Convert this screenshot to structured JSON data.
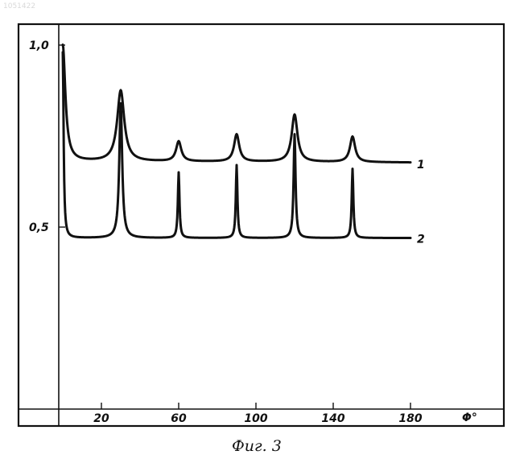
{
  "corner_mark": "1051422",
  "caption": "Фиг. 3",
  "chart_data": {
    "type": "line",
    "title": "",
    "xlabel": "Φ°",
    "ylabel": "",
    "xlim": [
      0,
      195
    ],
    "ylim": [
      0,
      1.05
    ],
    "x_ticks": [
      {
        "value": 20,
        "label": "20"
      },
      {
        "value": 60,
        "label": "60"
      },
      {
        "value": 100,
        "label": "100"
      },
      {
        "value": 140,
        "label": "140"
      },
      {
        "value": 180,
        "label": "180"
      }
    ],
    "y_ticks": [
      {
        "value": 1.0,
        "label": "1,0"
      },
      {
        "value": 0.5,
        "label": "0,5"
      }
    ],
    "grid": false,
    "series": [
      {
        "name": "1",
        "baseline": 0.68,
        "peaks": [
          {
            "x": 0,
            "y": 1.0,
            "w": 1.6
          },
          {
            "x": 30,
            "y": 0.875,
            "w": 2.2
          },
          {
            "x": 60,
            "y": 0.735,
            "w": 1.6
          },
          {
            "x": 90,
            "y": 0.755,
            "w": 1.6
          },
          {
            "x": 120,
            "y": 0.81,
            "w": 1.8
          },
          {
            "x": 150,
            "y": 0.75,
            "w": 1.6
          }
        ],
        "x_end": 180,
        "y_end": 0.675,
        "end_label": "1"
      },
      {
        "name": "2",
        "baseline": 0.47,
        "peaks": [
          {
            "x": 0,
            "y": 0.98,
            "w": 0.5
          },
          {
            "x": 30,
            "y": 0.84,
            "w": 0.9
          },
          {
            "x": 60,
            "y": 0.65,
            "w": 0.5
          },
          {
            "x": 90,
            "y": 0.67,
            "w": 0.5
          },
          {
            "x": 120,
            "y": 0.755,
            "w": 0.6
          },
          {
            "x": 150,
            "y": 0.66,
            "w": 0.5
          }
        ],
        "x_end": 180,
        "y_end": 0.47,
        "end_label": "2"
      }
    ]
  }
}
